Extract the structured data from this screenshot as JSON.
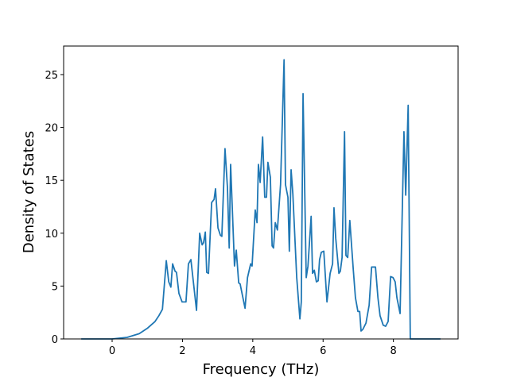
{
  "chart_data": {
    "type": "line",
    "x_label": "Frequency (THz)",
    "y_label": "Density of States",
    "xlim": [
      -1.38,
      9.84
    ],
    "ylim": [
      0,
      27.7
    ],
    "xticks": [
      0,
      2,
      4,
      6,
      8
    ],
    "yticks": [
      0,
      5,
      10,
      15,
      20,
      25
    ],
    "color": "#1f77b4",
    "x": [
      -0.88,
      0,
      0.43,
      0.77,
      1.0,
      1.22,
      1.33,
      1.43,
      1.54,
      1.61,
      1.67,
      1.72,
      1.79,
      1.83,
      1.9,
      1.99,
      2.1,
      2.17,
      2.24,
      2.31,
      2.4,
      2.49,
      2.56,
      2.6,
      2.65,
      2.69,
      2.74,
      2.83,
      2.9,
      2.94,
      3.01,
      3.08,
      3.12,
      3.21,
      3.28,
      3.33,
      3.37,
      3.48,
      3.53,
      3.6,
      3.64,
      3.78,
      3.85,
      3.94,
      3.98,
      4.07,
      4.12,
      4.16,
      4.21,
      4.28,
      4.34,
      4.39,
      4.43,
      4.5,
      4.55,
      4.59,
      4.64,
      4.7,
      4.79,
      4.89,
      4.93,
      5.0,
      5.04,
      5.09,
      5.14,
      5.25,
      5.34,
      5.38,
      5.43,
      5.52,
      5.57,
      5.66,
      5.7,
      5.75,
      5.81,
      5.86,
      5.9,
      5.95,
      6.02,
      6.11,
      6.2,
      6.27,
      6.31,
      6.36,
      6.45,
      6.49,
      6.54,
      6.61,
      6.65,
      6.7,
      6.76,
      6.86,
      6.92,
      6.99,
      7.04,
      7.08,
      7.13,
      7.22,
      7.31,
      7.38,
      7.42,
      7.49,
      7.56,
      7.62,
      7.71,
      7.78,
      7.85,
      7.92,
      7.99,
      8.05,
      8.1,
      8.19,
      8.3,
      8.35,
      8.42,
      8.48,
      9.34
    ],
    "values": [
      0,
      0,
      0.15,
      0.5,
      1.0,
      1.65,
      2.2,
      2.8,
      7.4,
      5.4,
      4.9,
      7.1,
      6.4,
      6.3,
      4.3,
      3.5,
      3.5,
      7.1,
      7.5,
      5.4,
      2.7,
      10.0,
      8.9,
      9.1,
      10.1,
      6.3,
      6.2,
      12.9,
      13.2,
      14.2,
      10.5,
      9.8,
      9.7,
      18.0,
      14.3,
      8.6,
      16.5,
      6.9,
      8.4,
      5.3,
      5.2,
      2.9,
      5.8,
      7.1,
      6.9,
      12.2,
      11.0,
      16.5,
      14.8,
      19.1,
      13.4,
      13.4,
      16.7,
      15.3,
      8.8,
      8.6,
      11.0,
      10.3,
      14.6,
      26.4,
      14.6,
      13.4,
      8.3,
      16.0,
      13.7,
      5.8,
      1.9,
      3.5,
      23.2,
      5.8,
      6.9,
      11.6,
      6.2,
      6.5,
      5.4,
      5.5,
      7.5,
      8.2,
      8.3,
      3.5,
      6.2,
      7.1,
      12.4,
      9.5,
      6.2,
      6.4,
      7.7,
      19.6,
      7.9,
      7.7,
      11.2,
      6.5,
      3.9,
      2.6,
      2.6,
      0.75,
      0.9,
      1.5,
      3.2,
      6.8,
      6.8,
      6.8,
      3.9,
      2.2,
      1.3,
      1.2,
      1.65,
      5.9,
      5.8,
      5.4,
      3.9,
      2.4,
      19.6,
      13.6,
      22.1,
      0,
      0
    ]
  }
}
